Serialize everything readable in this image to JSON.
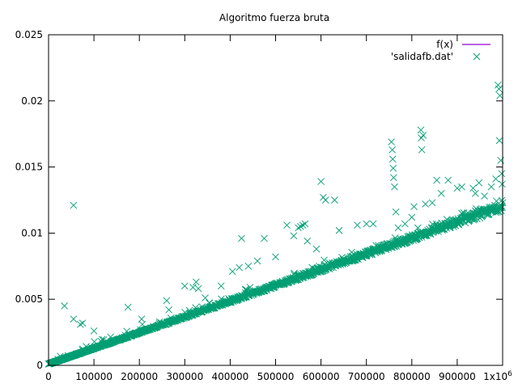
{
  "chart_data": {
    "type": "scatter",
    "title": "Algoritmo fuerza bruta",
    "xlabel": "",
    "ylabel": "",
    "xlim": [
      0,
      1000000
    ],
    "ylim": [
      0,
      0.025
    ],
    "x_ticks": [
      0,
      100000,
      200000,
      300000,
      400000,
      500000,
      600000,
      700000,
      800000,
      900000,
      1000000
    ],
    "x_tick_labels": [
      "0",
      "100000",
      "200000",
      "300000",
      "400000",
      "500000",
      "600000",
      "700000",
      "800000",
      "900000",
      "1x10"
    ],
    "x_tick_exponent": "6",
    "y_ticks": [
      0,
      0.005,
      0.01,
      0.015,
      0.02,
      0.025
    ],
    "y_tick_labels": [
      "0",
      "0.005",
      "0.01",
      "0.015",
      "0.02",
      "0.025"
    ],
    "grid": false,
    "legend_position": "top-right",
    "series": [
      {
        "name": "f(x)",
        "kind": "line",
        "color": "#9400d3",
        "points": []
      },
      {
        "name": "'salidafb.dat'",
        "kind": "points",
        "marker": "x",
        "color": "#009e73",
        "trend": {
          "x": [
            0,
            1000000
          ],
          "y": [
            0.0001,
            0.0119
          ]
        },
        "outliers": [
          [
            55000,
            0.0121
          ],
          [
            35000,
            0.0045
          ],
          [
            55000,
            0.0035
          ],
          [
            70000,
            0.0031
          ],
          [
            75000,
            0.0032
          ],
          [
            100000,
            0.0026
          ],
          [
            175000,
            0.0044
          ],
          [
            205000,
            0.0035
          ],
          [
            260000,
            0.0049
          ],
          [
            265000,
            0.0042
          ],
          [
            300000,
            0.006
          ],
          [
            318000,
            0.0059
          ],
          [
            325000,
            0.0063
          ],
          [
            330000,
            0.0058
          ],
          [
            345000,
            0.0051
          ],
          [
            380000,
            0.006
          ],
          [
            405000,
            0.0071
          ],
          [
            420000,
            0.0074
          ],
          [
            425000,
            0.0096
          ],
          [
            440000,
            0.0075
          ],
          [
            460000,
            0.0079
          ],
          [
            475000,
            0.0096
          ],
          [
            500000,
            0.0082
          ],
          [
            525000,
            0.0106
          ],
          [
            540000,
            0.0098
          ],
          [
            550000,
            0.0104
          ],
          [
            555000,
            0.0105
          ],
          [
            560000,
            0.0106
          ],
          [
            565000,
            0.0107
          ],
          [
            570000,
            0.0094
          ],
          [
            590000,
            0.0088
          ],
          [
            600000,
            0.0139
          ],
          [
            605000,
            0.0127
          ],
          [
            610000,
            0.0125
          ],
          [
            630000,
            0.0125
          ],
          [
            640000,
            0.0102
          ],
          [
            680000,
            0.0106
          ],
          [
            700000,
            0.0107
          ],
          [
            715000,
            0.0107
          ],
          [
            755000,
            0.0169
          ],
          [
            757000,
            0.0163
          ],
          [
            758000,
            0.0156
          ],
          [
            759000,
            0.0149
          ],
          [
            760000,
            0.0142
          ],
          [
            762000,
            0.0135
          ],
          [
            765000,
            0.0116
          ],
          [
            770000,
            0.0104
          ],
          [
            785000,
            0.0107
          ],
          [
            800000,
            0.0112
          ],
          [
            805000,
            0.012
          ],
          [
            820000,
            0.0178
          ],
          [
            821000,
            0.0172
          ],
          [
            822000,
            0.0163
          ],
          [
            825000,
            0.0174
          ],
          [
            830000,
            0.0122
          ],
          [
            845000,
            0.0123
          ],
          [
            855000,
            0.014
          ],
          [
            865000,
            0.013
          ],
          [
            880000,
            0.014
          ],
          [
            900000,
            0.0134
          ],
          [
            910000,
            0.0135
          ],
          [
            935000,
            0.0134
          ],
          [
            940000,
            0.013
          ],
          [
            948000,
            0.0138
          ],
          [
            960000,
            0.0128
          ],
          [
            975000,
            0.0135
          ],
          [
            985000,
            0.0141
          ],
          [
            990000,
            0.0212
          ],
          [
            992000,
            0.0209
          ],
          [
            993000,
            0.017
          ],
          [
            994000,
            0.0204
          ],
          [
            996000,
            0.0155
          ],
          [
            998000,
            0.0145
          ],
          [
            999000,
            0.0137
          ]
        ]
      }
    ]
  }
}
